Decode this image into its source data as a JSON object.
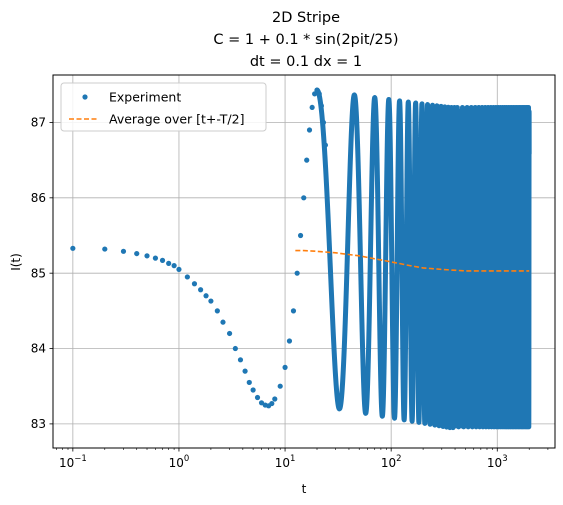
{
  "chart_data": {
    "type": "scatter",
    "title_lines": [
      "2D Stripe",
      "C = 1 + 0.1 * sin(2pit/25)",
      "dt = 0.1 dx = 1"
    ],
    "xlabel": "t",
    "ylabel": "I(t)",
    "x_scale": "log",
    "xlim": [
      0.065,
      3500
    ],
    "ylim": [
      82.68,
      87.63
    ],
    "x_ticks": [
      {
        "value": 0.1,
        "base": "10",
        "exp": "−1"
      },
      {
        "value": 1,
        "base": "10",
        "exp": "0"
      },
      {
        "value": 10,
        "base": "10",
        "exp": "1"
      },
      {
        "value": 100,
        "base": "10",
        "exp": "2"
      },
      {
        "value": 1000,
        "base": "10",
        "exp": "3"
      }
    ],
    "y_ticks": [
      83,
      84,
      85,
      86,
      87
    ],
    "grid": true,
    "legend_position": "top-left",
    "series": [
      {
        "name": "Experiment",
        "style": "dots",
        "color": "#1f77b4",
        "early_points": [
          [
            0.1,
            85.33
          ],
          [
            0.2,
            85.32
          ],
          [
            0.3,
            85.29
          ],
          [
            0.4,
            85.26
          ],
          [
            0.5,
            85.23
          ],
          [
            0.6,
            85.2
          ],
          [
            0.7,
            85.17
          ],
          [
            0.8,
            85.13
          ],
          [
            0.9,
            85.1
          ],
          [
            1.0,
            85.05
          ],
          [
            1.2,
            84.95
          ],
          [
            1.4,
            84.86
          ],
          [
            1.6,
            84.78
          ],
          [
            1.8,
            84.7
          ],
          [
            2.0,
            84.63
          ],
          [
            2.3,
            84.5
          ],
          [
            2.6,
            84.35
          ],
          [
            3.0,
            84.2
          ],
          [
            3.4,
            84.0
          ],
          [
            3.8,
            83.85
          ],
          [
            4.2,
            83.7
          ],
          [
            4.6,
            83.55
          ],
          [
            5.0,
            83.45
          ],
          [
            5.5,
            83.35
          ],
          [
            6.0,
            83.28
          ],
          [
            6.5,
            83.25
          ],
          [
            7.0,
            83.24
          ],
          [
            7.5,
            83.27
          ],
          [
            8.0,
            83.33
          ],
          [
            9.0,
            83.5
          ],
          [
            10.0,
            83.75
          ],
          [
            11.0,
            84.1
          ],
          [
            12.0,
            84.5
          ],
          [
            13.0,
            85.0
          ],
          [
            14.0,
            85.5
          ],
          [
            15.0,
            86.0
          ],
          [
            16.0,
            86.5
          ],
          [
            17.0,
            86.9
          ],
          [
            18.0,
            87.2
          ],
          [
            19.0,
            87.38
          ],
          [
            20.0,
            87.43
          ],
          [
            21.0,
            87.38
          ],
          [
            22.0,
            87.22
          ],
          [
            23.0,
            87.0
          ],
          [
            24.0,
            86.7
          ]
        ],
        "oscillation": {
          "period": 25,
          "t_start": 20,
          "t_end": 2000,
          "min_start": 83.25,
          "max_start": 87.43,
          "min_end": 82.95,
          "max_end": 87.2,
          "peak_t": 20
        }
      },
      {
        "name": "Average over [t+-T/2]",
        "style": "dashed",
        "color": "#ff7f0e",
        "points": [
          [
            12.5,
            85.3
          ],
          [
            15,
            85.3
          ],
          [
            20,
            85.29
          ],
          [
            30,
            85.27
          ],
          [
            50,
            85.23
          ],
          [
            100,
            85.15
          ],
          [
            150,
            85.1
          ],
          [
            200,
            85.07
          ],
          [
            300,
            85.05
          ],
          [
            500,
            85.03
          ],
          [
            1000,
            85.03
          ],
          [
            2000,
            85.03
          ]
        ]
      }
    ]
  }
}
